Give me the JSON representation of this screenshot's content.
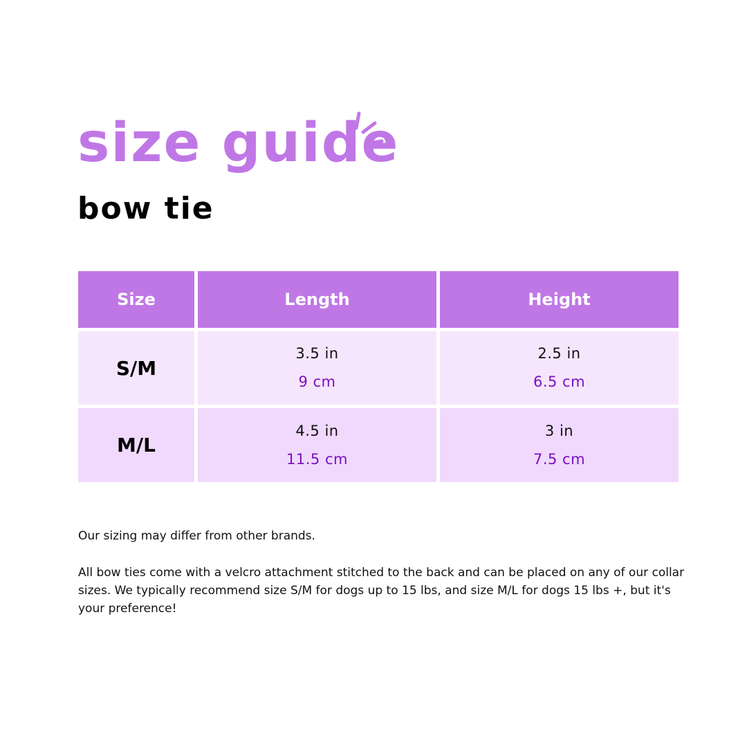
{
  "title": "size guide",
  "subtitle": "bow tie",
  "colors": {
    "accent": "#c077e6",
    "row_light": "#f6e6fd",
    "row_dark": "#f0d9fc",
    "metric": "#7b0fc2"
  },
  "table": {
    "headers": [
      "Size",
      "Length",
      "Height"
    ],
    "rows": [
      {
        "size": "S/M",
        "length_in": "3.5 in",
        "length_cm": "9 cm",
        "height_in": "2.5 in",
        "height_cm": "6.5 cm"
      },
      {
        "size": "M/L",
        "length_in": "4.5 in",
        "length_cm": "11.5 cm",
        "height_in": "3 in",
        "height_cm": "7.5 cm"
      }
    ]
  },
  "notes": [
    "Our sizing may differ from other brands.",
    "All bow ties come with a velcro attachment stitched to the back and can be placed on any of our collar sizes.  We typically recommend size S/M for dogs up to 15 lbs, and size M/L for dogs 15 lbs +, but it's your preference!"
  ]
}
